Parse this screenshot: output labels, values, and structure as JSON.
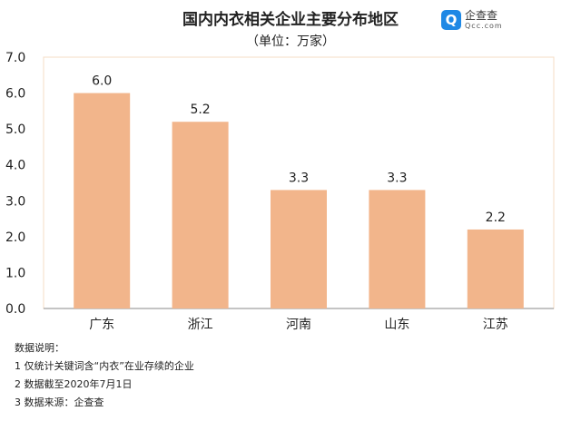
{
  "logo": {
    "name": "企查查",
    "domain": "Qcc.com"
  },
  "chart_data": {
    "type": "bar",
    "title": "国内内衣相关企业主要分布地区",
    "subtitle": "（单位：万家）",
    "categories": [
      "广东",
      "浙江",
      "河南",
      "山东",
      "江苏"
    ],
    "values": [
      6.0,
      5.2,
      3.3,
      3.3,
      2.2
    ],
    "ylim": [
      0,
      7
    ],
    "yticks": [
      "0.0",
      "1.0",
      "2.0",
      "3.0",
      "4.0",
      "5.0",
      "6.0",
      "7.0"
    ],
    "grid": false,
    "bar_color": "#F2B58B"
  },
  "notes": [
    "数据说明：",
    "1 仅统计关键词含“内衣”在业存续的企业",
    "2 数据截至2020年7月1日",
    "3 数据来源：企查查"
  ]
}
